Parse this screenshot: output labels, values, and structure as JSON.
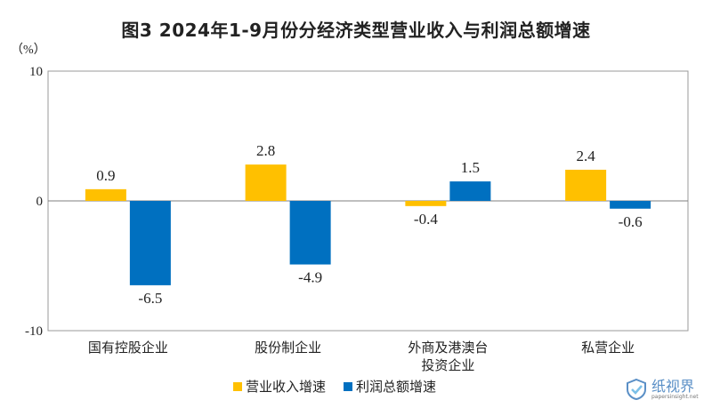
{
  "chart_data": {
    "type": "bar",
    "title": "图3  2024年1-9月份分经济类型营业收入与利润总额增速",
    "unit_label": "（%）",
    "categories": [
      "国有控股企业",
      "股份制企业",
      "外商及港澳台\n投资企业",
      "私营企业"
    ],
    "series": [
      {
        "name": "营业收入增速",
        "values": [
          0.9,
          2.8,
          -0.4,
          2.4
        ],
        "color": "#FFC000"
      },
      {
        "name": "利润总额增速",
        "values": [
          -6.5,
          -4.9,
          1.5,
          -0.6
        ],
        "color": "#0070C0"
      }
    ],
    "ylim": [
      -10,
      10
    ],
    "yticks": [
      -10,
      0,
      10
    ],
    "value_labels": true,
    "legend_position": "bottom-center",
    "grid": false
  },
  "watermark": {
    "text": "纸视界",
    "sub": "papersinsight.net",
    "icon": "check-shield-icon"
  }
}
